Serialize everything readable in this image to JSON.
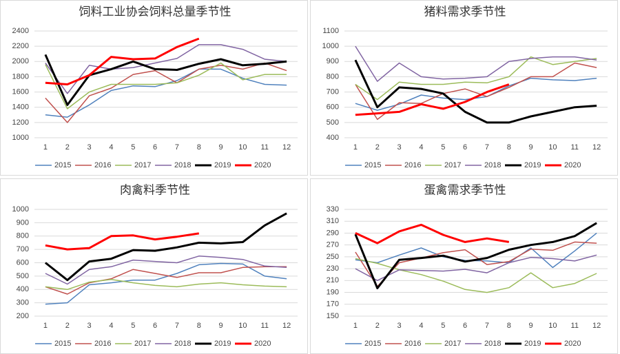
{
  "chart_data": [
    {
      "type": "line",
      "title": "饲料工业协会饲料总量季节性",
      "categories": [
        "1",
        "2",
        "3",
        "4",
        "5",
        "6",
        "7",
        "8",
        "9",
        "10",
        "11",
        "12"
      ],
      "ylim": [
        1000,
        2400
      ],
      "yticks": [
        1000,
        1200,
        1400,
        1600,
        1800,
        2000,
        2200,
        2400
      ],
      "grid": true,
      "series": [
        {
          "name": "2015",
          "color": "#4f81bd",
          "line_width": 1.5,
          "values": [
            1300,
            1270,
            1430,
            1620,
            1680,
            1670,
            1750,
            1900,
            1900,
            1780,
            1700,
            1690
          ]
        },
        {
          "name": "2016",
          "color": "#c0504d",
          "line_width": 1.5,
          "values": [
            1520,
            1200,
            1550,
            1650,
            1830,
            1880,
            1720,
            1900,
            1950,
            1900,
            1980,
            1880
          ]
        },
        {
          "name": "2017",
          "color": "#9bbb59",
          "line_width": 1.5,
          "values": [
            1960,
            1380,
            1600,
            1700,
            1700,
            1700,
            1720,
            1820,
            1980,
            1760,
            1830,
            1830
          ]
        },
        {
          "name": "2018",
          "color": "#8064a2",
          "line_width": 1.5,
          "values": [
            1980,
            1580,
            1950,
            1900,
            1920,
            1980,
            2040,
            2220,
            2220,
            2160,
            2030,
            2000
          ]
        },
        {
          "name": "2019",
          "color": "#000000",
          "line_width": 3,
          "values": [
            2090,
            1430,
            1820,
            1900,
            2000,
            1900,
            1890,
            1970,
            2030,
            1950,
            1970,
            2000
          ]
        },
        {
          "name": "2020",
          "color": "#ff0000",
          "line_width": 3,
          "values": [
            1720,
            1700,
            1820,
            2060,
            2030,
            2040,
            2190,
            2300,
            null,
            null,
            null,
            null
          ]
        }
      ]
    },
    {
      "type": "line",
      "title": "猪料需求季节性",
      "categories": [
        "1",
        "2",
        "3",
        "4",
        "5",
        "6",
        "7",
        "8",
        "9",
        "10",
        "11",
        "12"
      ],
      "ylim": [
        400,
        1100
      ],
      "yticks": [
        400,
        500,
        600,
        700,
        800,
        900,
        1000,
        1100
      ],
      "grid": true,
      "series": [
        {
          "name": "2015",
          "color": "#4f81bd",
          "line_width": 1.5,
          "values": [
            625,
            580,
            620,
            680,
            660,
            650,
            670,
            740,
            790,
            780,
            775,
            790
          ]
        },
        {
          "name": "2016",
          "color": "#c0504d",
          "line_width": 1.5,
          "values": [
            750,
            520,
            630,
            625,
            690,
            720,
            670,
            730,
            800,
            800,
            890,
            860
          ]
        },
        {
          "name": "2017",
          "color": "#9bbb59",
          "line_width": 1.5,
          "values": [
            750,
            650,
            765,
            750,
            750,
            765,
            760,
            800,
            930,
            880,
            900,
            920
          ]
        },
        {
          "name": "2018",
          "color": "#8064a2",
          "line_width": 1.5,
          "values": [
            1000,
            770,
            890,
            800,
            785,
            790,
            800,
            900,
            920,
            930,
            930,
            910
          ]
        },
        {
          "name": "2019",
          "color": "#000000",
          "line_width": 3,
          "values": [
            910,
            600,
            730,
            720,
            690,
            570,
            500,
            500,
            540,
            570,
            600,
            610
          ]
        },
        {
          "name": "2020",
          "color": "#ff0000",
          "line_width": 3,
          "values": [
            550,
            560,
            570,
            620,
            590,
            635,
            700,
            750,
            null,
            null,
            null,
            null
          ]
        }
      ]
    },
    {
      "type": "line",
      "title": "肉禽料季节性",
      "categories": [
        "1",
        "2",
        "3",
        "4",
        "5",
        "6",
        "7",
        "8",
        "9",
        "10",
        "11",
        "12"
      ],
      "ylim": [
        200,
        1000
      ],
      "yticks": [
        200,
        300,
        400,
        500,
        600,
        700,
        800,
        900,
        1000
      ],
      "grid": true,
      "series": [
        {
          "name": "2015",
          "color": "#4f81bd",
          "line_width": 1.5,
          "values": [
            290,
            300,
            435,
            450,
            470,
            470,
            520,
            585,
            595,
            590,
            500,
            480
          ]
        },
        {
          "name": "2016",
          "color": "#c0504d",
          "line_width": 1.5,
          "values": [
            420,
            365,
            450,
            480,
            550,
            520,
            490,
            525,
            525,
            565,
            570,
            570
          ]
        },
        {
          "name": "2017",
          "color": "#9bbb59",
          "line_width": 1.5,
          "values": [
            420,
            400,
            455,
            475,
            450,
            430,
            420,
            440,
            450,
            435,
            425,
            420
          ]
        },
        {
          "name": "2018",
          "color": "#8064a2",
          "line_width": 1.5,
          "values": [
            520,
            440,
            550,
            570,
            620,
            610,
            600,
            650,
            640,
            625,
            575,
            565
          ]
        },
        {
          "name": "2019",
          "color": "#000000",
          "line_width": 3,
          "values": [
            600,
            470,
            610,
            630,
            695,
            690,
            715,
            750,
            745,
            755,
            880,
            970
          ]
        },
        {
          "name": "2020",
          "color": "#ff0000",
          "line_width": 3,
          "values": [
            730,
            700,
            710,
            800,
            805,
            775,
            795,
            820,
            null,
            null,
            null,
            null
          ]
        }
      ]
    },
    {
      "type": "line",
      "title": "蛋禽需求季节性",
      "categories": [
        "1",
        "2",
        "3",
        "4",
        "5",
        "6",
        "7",
        "8",
        "9",
        "10",
        "11",
        "12"
      ],
      "ylim": [
        150,
        330
      ],
      "yticks": [
        150,
        170,
        190,
        210,
        230,
        250,
        270,
        290,
        310,
        330
      ],
      "grid": true,
      "series": [
        {
          "name": "2015",
          "color": "#4f81bd",
          "line_width": 1.5,
          "values": [
            245,
            240,
            253,
            265,
            250,
            244,
            243,
            240,
            265,
            232,
            260,
            290
          ]
        },
        {
          "name": "2016",
          "color": "#c0504d",
          "line_width": 1.5,
          "values": [
            258,
            200,
            240,
            248,
            257,
            262,
            237,
            242,
            263,
            261,
            275,
            273
          ]
        },
        {
          "name": "2017",
          "color": "#9bbb59",
          "line_width": 1.5,
          "values": [
            247,
            239,
            228,
            220,
            209,
            195,
            190,
            198,
            223,
            198,
            205,
            222
          ]
        },
        {
          "name": "2018",
          "color": "#8064a2",
          "line_width": 1.5,
          "values": [
            230,
            210,
            228,
            227,
            226,
            229,
            223,
            240,
            249,
            247,
            243,
            253
          ]
        },
        {
          "name": "2019",
          "color": "#000000",
          "line_width": 3,
          "values": [
            288,
            197,
            245,
            248,
            252,
            242,
            248,
            262,
            270,
            275,
            285,
            307
          ]
        },
        {
          "name": "2020",
          "color": "#ff0000",
          "line_width": 3,
          "values": [
            290,
            273,
            293,
            304,
            287,
            275,
            281,
            275,
            null,
            null,
            null,
            null
          ]
        }
      ]
    }
  ]
}
